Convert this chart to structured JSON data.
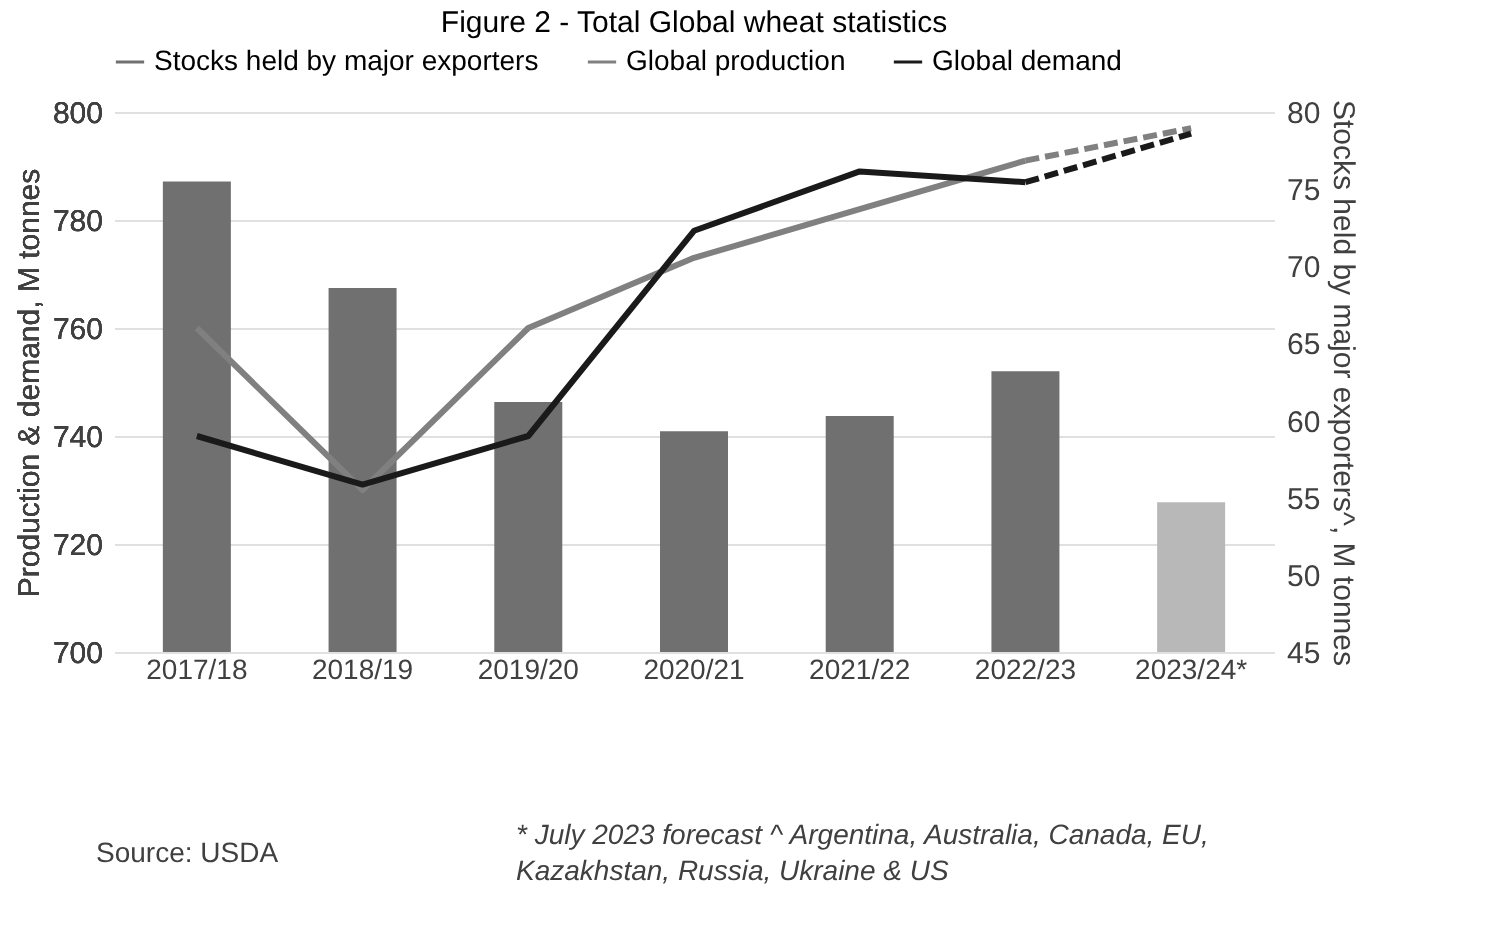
{
  "chart_data": {
    "type": "bar",
    "title": "Figure 2 - Total Global wheat statistics",
    "categories": [
      "2017/18",
      "2018/19",
      "2019/20",
      "2020/21",
      "2021/22",
      "2022/23",
      "2023/24*"
    ],
    "series": [
      {
        "name": "Stocks held by major exporters",
        "axis": "y2",
        "color": "#707070",
        "colors": [
          "#707070",
          "#707070",
          "#707070",
          "#707070",
          "#707070",
          "#707070",
          "#b8b8b8"
        ],
        "values": [
          75.5,
          68.6,
          61.2,
          59.3,
          60.3,
          63.2,
          54.7
        ]
      },
      {
        "name": "Global production",
        "type": "line",
        "color": "#808080",
        "line_style": "solid",
        "values": [
          760,
          730,
          760,
          773,
          782,
          791,
          null
        ]
      },
      {
        "name": "Global demand",
        "type": "line",
        "color": "#1a1a1a",
        "line_style": "solid",
        "values": [
          740,
          731,
          740,
          778,
          789,
          787,
          null
        ]
      },
      {
        "type": "line",
        "color": "#808080",
        "line_style": "dashed",
        "values": [
          null,
          null,
          null,
          null,
          null,
          791,
          797
        ]
      },
      {
        "type": "line",
        "color": "#1a1a1a",
        "line_style": "dashed",
        "values": [
          null,
          null,
          null,
          null,
          null,
          787,
          796
        ]
      }
    ],
    "ylabel": "Production & demand, M tonnes",
    "y2label": "Stocks held by major exporters^, M tonnes",
    "ylim": [
      700,
      800
    ],
    "yticks": [
      700,
      720,
      740,
      760,
      780,
      800
    ],
    "y2lim": [
      45,
      80
    ],
    "y2ticks": [
      45,
      50,
      55,
      60,
      65,
      70,
      75,
      80
    ],
    "grid": "y",
    "legend": "top",
    "annotations": [
      "Source: USDA",
      "* July 2023 forecast   ^ Argentina, Australia, Canada, EU, Kazakhstan, Russia, Ukraine & US"
    ]
  }
}
